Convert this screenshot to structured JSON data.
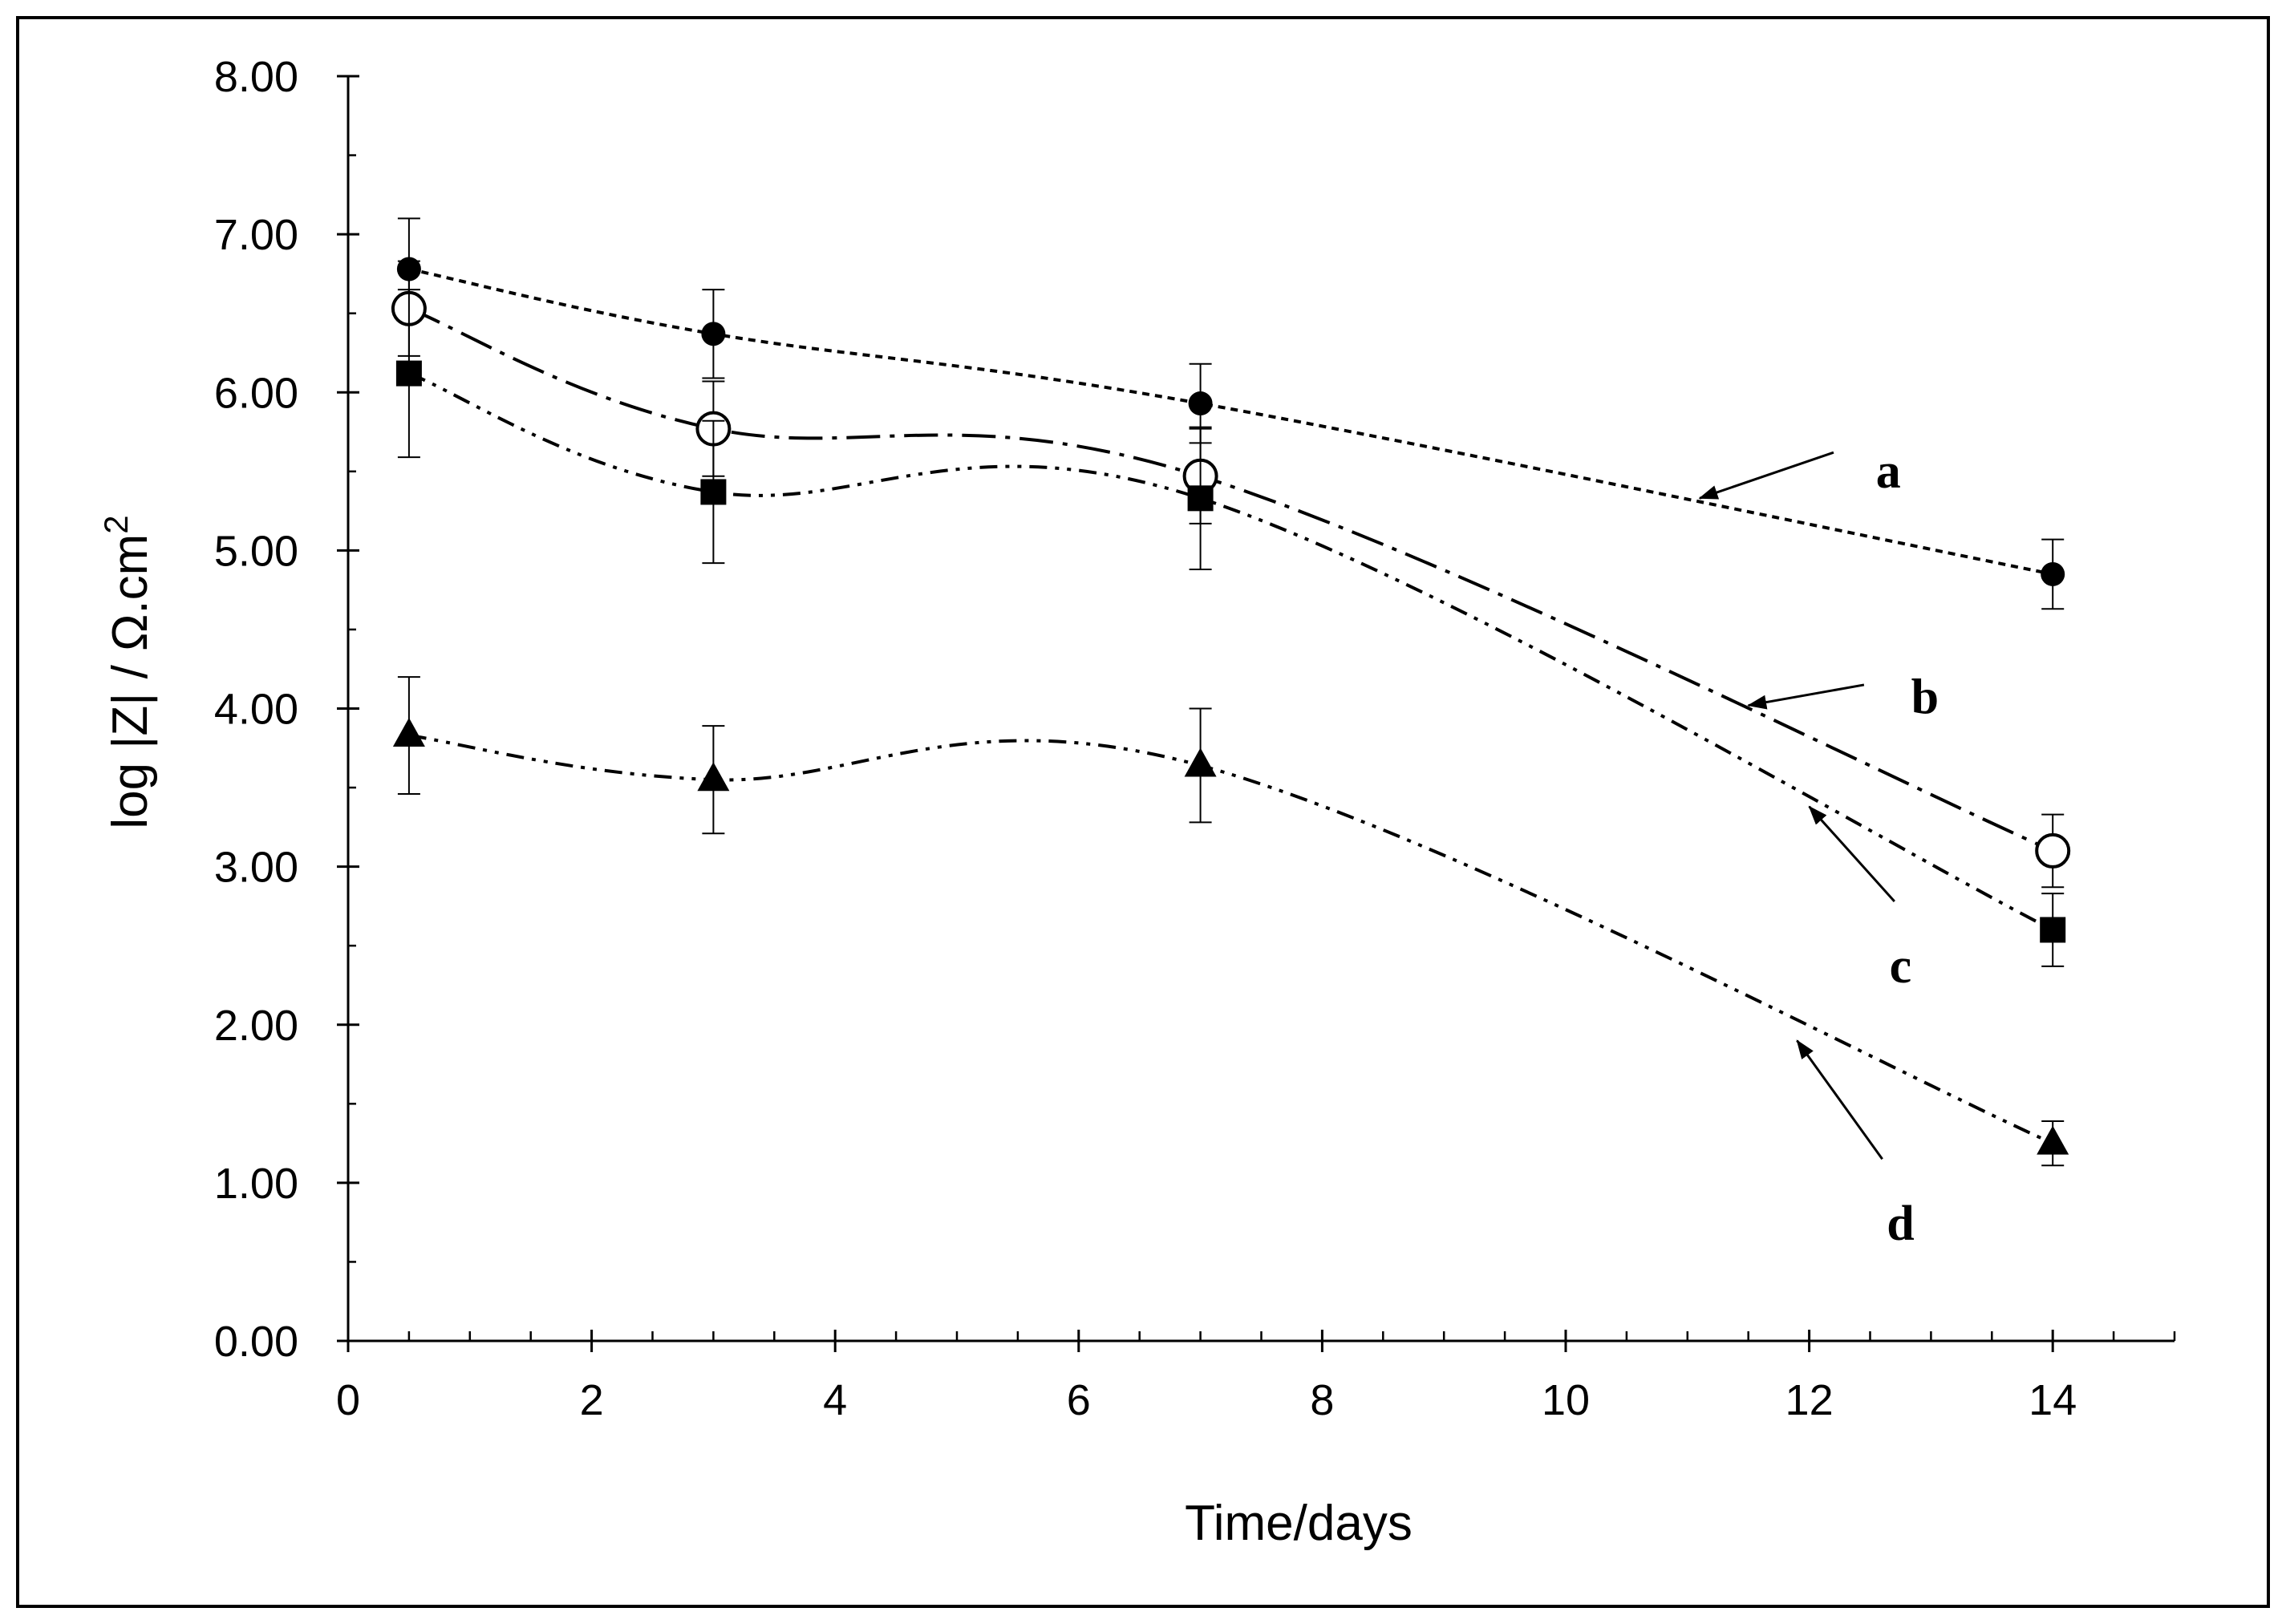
{
  "chart_data": {
    "type": "line",
    "title": "",
    "xlabel": "Time/days",
    "ylabel_main": "log |Z| / Ω.cm",
    "ylabel_sup": "2",
    "xlim": [
      0,
      15
    ],
    "ylim": [
      0,
      8
    ],
    "x_ticks": [
      0,
      2,
      4,
      6,
      8,
      10,
      12,
      14
    ],
    "x_tick_labels": [
      "0",
      "2",
      "4",
      "6",
      "8",
      "10",
      "12",
      "14"
    ],
    "y_ticks": [
      0,
      1,
      2,
      3,
      4,
      5,
      6,
      7,
      8
    ],
    "y_tick_labels": [
      "0.00",
      "1.00",
      "2.00",
      "3.00",
      "4.00",
      "5.00",
      "6.00",
      "7.00",
      "8.00"
    ],
    "grid": false,
    "legend": "none",
    "series": [
      {
        "name": "a",
        "marker": "filled-circle",
        "line": "dotted",
        "x": [
          0.5,
          3,
          7,
          14
        ],
        "y": [
          6.78,
          6.37,
          5.93,
          4.85
        ],
        "err": [
          0.32,
          0.28,
          0.25,
          0.22
        ],
        "label_arrow_to": [
          11.1,
          5.33
        ]
      },
      {
        "name": "b",
        "marker": "open-circle",
        "line": "long-dash-dot",
        "x": [
          0.5,
          3,
          7,
          14
        ],
        "y": [
          6.53,
          5.77,
          5.47,
          3.1
        ],
        "err": [
          0.3,
          0.3,
          0.3,
          0.23
        ],
        "label_arrow_to": [
          11.5,
          4.02
        ]
      },
      {
        "name": "c",
        "marker": "filled-square",
        "line": "dash-dot-dot",
        "x": [
          0.5,
          3,
          7,
          14
        ],
        "y": [
          6.12,
          5.37,
          5.33,
          2.6
        ],
        "err": [
          0.53,
          0.45,
          0.45,
          0.23
        ],
        "label_arrow_to": [
          12.0,
          3.38
        ]
      },
      {
        "name": "d",
        "marker": "filled-triangle",
        "line": "dash-dot-dot",
        "x": [
          0.5,
          3,
          7,
          14
        ],
        "y": [
          3.83,
          3.55,
          3.64,
          1.25
        ],
        "err": [
          0.37,
          0.34,
          0.36,
          0.14
        ],
        "label_arrow_to": [
          11.9,
          1.9
        ]
      }
    ]
  }
}
